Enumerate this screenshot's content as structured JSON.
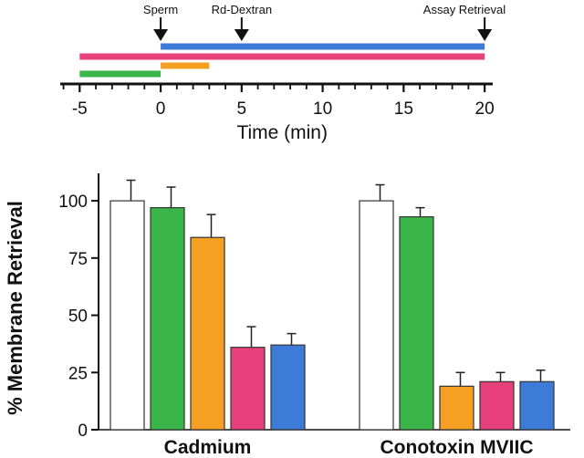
{
  "chart_data": [
    {
      "type": "timeline",
      "xlabel": "Time (min)",
      "xlim": [
        -6.2,
        20.5
      ],
      "ticks": [
        -5,
        0,
        5,
        10,
        15,
        20
      ],
      "tick_labels": [
        "-5",
        "0",
        "5",
        "10",
        "15",
        "20"
      ],
      "events": [
        {
          "label": "Sperm",
          "x": 0
        },
        {
          "label": "Rd-Dextran",
          "x": 5
        },
        {
          "label": "Assay Retrieval",
          "x": 20
        }
      ],
      "bars": [
        {
          "color": "#3d7bd9",
          "start": 0,
          "end": 20
        },
        {
          "color": "#e8407a",
          "start": -5,
          "end": 20
        },
        {
          "color": "#f5a023",
          "start": 0,
          "end": 3
        },
        {
          "color": "#3ab54a",
          "start": -5,
          "end": 0
        }
      ]
    },
    {
      "type": "bar",
      "ylabel": "% Membrane Retrieval",
      "ylim": [
        0,
        112
      ],
      "yticks": [
        0,
        25,
        50,
        75,
        100
      ],
      "ytick_labels": [
        "0",
        "25",
        "50",
        "75",
        "100"
      ],
      "groups": [
        {
          "label": "Cadmium",
          "bars": [
            {
              "color": "#ffffff",
              "value": 100,
              "error": 9
            },
            {
              "color": "#3ab54a",
              "value": 97,
              "error": 9
            },
            {
              "color": "#f5a023",
              "value": 84,
              "error": 10
            },
            {
              "color": "#e8407a",
              "value": 36,
              "error": 9
            },
            {
              "color": "#3d7bd9",
              "value": 37,
              "error": 5
            }
          ]
        },
        {
          "label": "Conotoxin MVIIC",
          "bars": [
            {
              "color": "#ffffff",
              "value": 100,
              "error": 7
            },
            {
              "color": "#3ab54a",
              "value": 93,
              "error": 4
            },
            {
              "color": "#f5a023",
              "value": 19,
              "error": 6
            },
            {
              "color": "#e8407a",
              "value": 21,
              "error": 4
            },
            {
              "color": "#3d7bd9",
              "value": 21,
              "error": 5
            }
          ]
        }
      ]
    }
  ]
}
